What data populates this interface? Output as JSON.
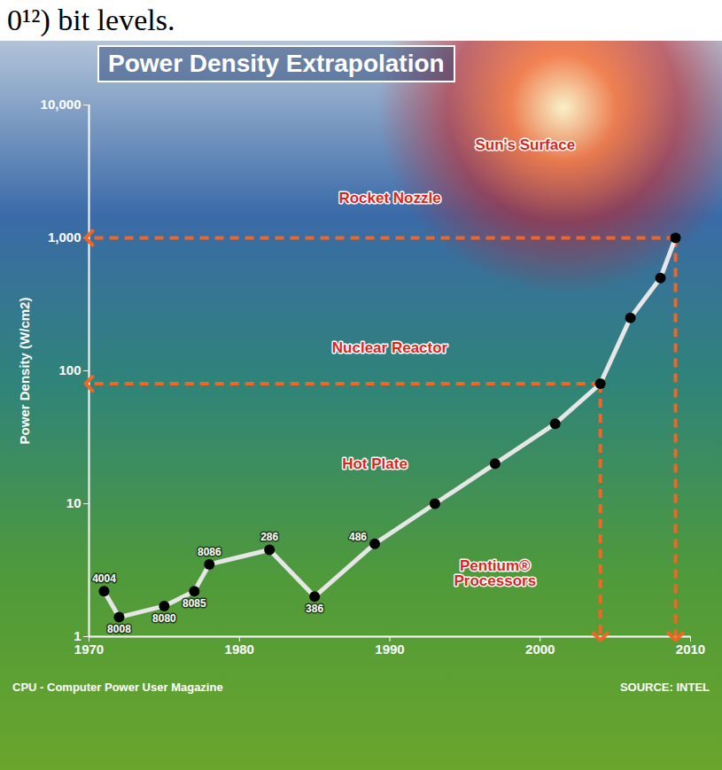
{
  "chart_data": {
    "type": "line",
    "header": "0¹²) bit levels.",
    "title": "Power Density Extrapolation",
    "y_label": "Power Density (W/cm2)",
    "source": "SOURCE: INTEL",
    "caption": "CPU - Computer Power User Magazine",
    "log": "y",
    "grid": false,
    "x": [
      1971,
      1972,
      1975,
      1977,
      1978,
      1982,
      1985,
      1989,
      1993,
      1997,
      2001,
      2004,
      2006,
      2008,
      2009
    ],
    "values": [
      2.2,
      1.4,
      1.7,
      2.2,
      3.5,
      4.5,
      2,
      5,
      10,
      20,
      40,
      80,
      250,
      500,
      1000
    ],
    "labels": [
      "4004",
      "8008",
      "8080",
      "8085",
      "8086",
      "286",
      "386",
      "486",
      null,
      null,
      null,
      null,
      null,
      null,
      null
    ],
    "color": "#e6e6e6",
    "marker": "circle",
    "xlim": [
      1970,
      2010
    ],
    "xticks": [
      1970,
      1980,
      1990,
      2000,
      2010
    ],
    "ylim": [
      1,
      10000
    ],
    "yticks": [
      1,
      10,
      100,
      {
        "value": 1000,
        "label": "1,000"
      },
      {
        "value": 10000,
        "label": "10,000"
      }
    ],
    "annotations": [
      {
        "text": "Hot Plate",
        "x": 1989,
        "y": 20
      },
      {
        "text": "Nuclear Reactor",
        "x": 1990,
        "y": 150
      },
      {
        "text": "Rocket Nozzle",
        "x": 1990,
        "y": 2000
      },
      {
        "text": "Sun's Surface",
        "x": 1999,
        "y": 5000
      },
      {
        "text": "Pentium® Processors",
        "x": 1997,
        "y": 3
      }
    ],
    "reference_lines": [
      {
        "x": 2004,
        "y": 80,
        "color": "#f26522",
        "line_style": "dashed"
      },
      {
        "x": 2009,
        "y": 1000,
        "color": "#f26522",
        "line_style": "dashed"
      }
    ]
  }
}
